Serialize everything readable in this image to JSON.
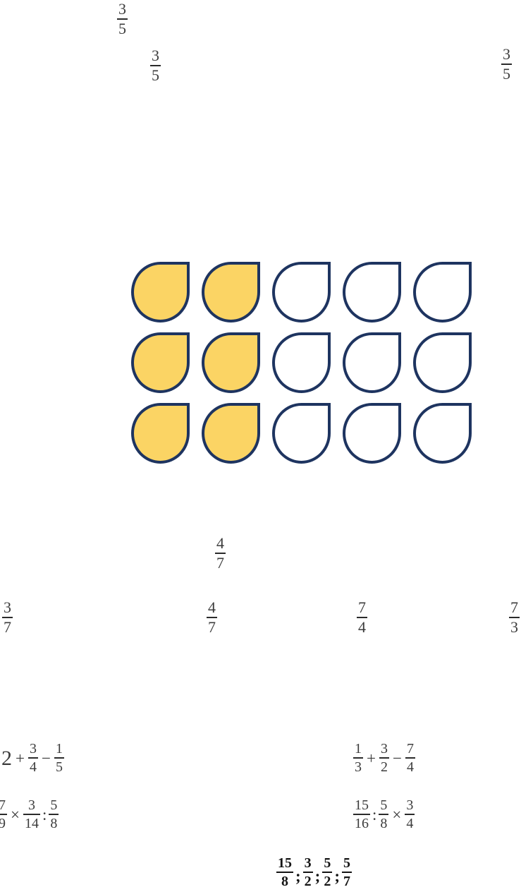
{
  "colors": {
    "drop_fill": "#FBD464",
    "drop_outline": "#1E3460",
    "text": "#3C3C3C",
    "bar": "#2B2B2B",
    "bold_text": "#141414"
  },
  "drop_grid": {
    "rows": 3,
    "cols": 5,
    "filled_cols_per_row": 2,
    "total_shapes": 15,
    "filled_shapes": 6
  },
  "fractions": {
    "top1": {
      "n": "3",
      "d": "5"
    },
    "top2": {
      "n": "3",
      "d": "5"
    },
    "top3": {
      "n": "3",
      "d": "5"
    },
    "mid_center": {
      "n": "4",
      "d": "7"
    },
    "row_a": {
      "n": "3",
      "d": "7"
    },
    "row_b": {
      "n": "4",
      "d": "7"
    },
    "row_c": {
      "n": "7",
      "d": "4"
    },
    "row_d": {
      "n": "7",
      "d": "3"
    }
  },
  "expressions": {
    "e1": {
      "tokens": [
        {
          "t": "int",
          "v": "2"
        },
        {
          "t": "op",
          "v": "+"
        },
        {
          "t": "frac",
          "n": "3",
          "d": "4"
        },
        {
          "t": "op",
          "v": "−"
        },
        {
          "t": "frac",
          "n": "1",
          "d": "5"
        }
      ]
    },
    "e2": {
      "tokens": [
        {
          "t": "frac",
          "n": "1",
          "d": "3"
        },
        {
          "t": "op",
          "v": "+"
        },
        {
          "t": "frac",
          "n": "3",
          "d": "2"
        },
        {
          "t": "op",
          "v": "−"
        },
        {
          "t": "frac",
          "n": "7",
          "d": "4"
        }
      ]
    },
    "e3": {
      "tokens": [
        {
          "t": "frac",
          "n": "7",
          "d": "9"
        },
        {
          "t": "op",
          "v": "×"
        },
        {
          "t": "frac",
          "n": "3",
          "d": "14"
        },
        {
          "t": "op-tight",
          "v": ":"
        },
        {
          "t": "frac",
          "n": "5",
          "d": "8"
        }
      ]
    },
    "e4": {
      "tokens": [
        {
          "t": "frac",
          "n": "15",
          "d": "16"
        },
        {
          "t": "op-tight",
          "v": ":"
        },
        {
          "t": "frac",
          "n": "5",
          "d": "8"
        },
        {
          "t": "op",
          "v": "×"
        },
        {
          "t": "frac",
          "n": "3",
          "d": "4"
        }
      ]
    },
    "e5": {
      "tokens": [
        {
          "t": "frac",
          "n": "15",
          "d": "8"
        },
        {
          "t": "op-low",
          "v": ";"
        },
        {
          "t": "frac",
          "n": "3",
          "d": "2"
        },
        {
          "t": "op-low",
          "v": ";"
        },
        {
          "t": "frac",
          "n": "5",
          "d": "2"
        },
        {
          "t": "op-low",
          "v": ";"
        },
        {
          "t": "frac",
          "n": "5",
          "d": "7"
        }
      ]
    }
  }
}
